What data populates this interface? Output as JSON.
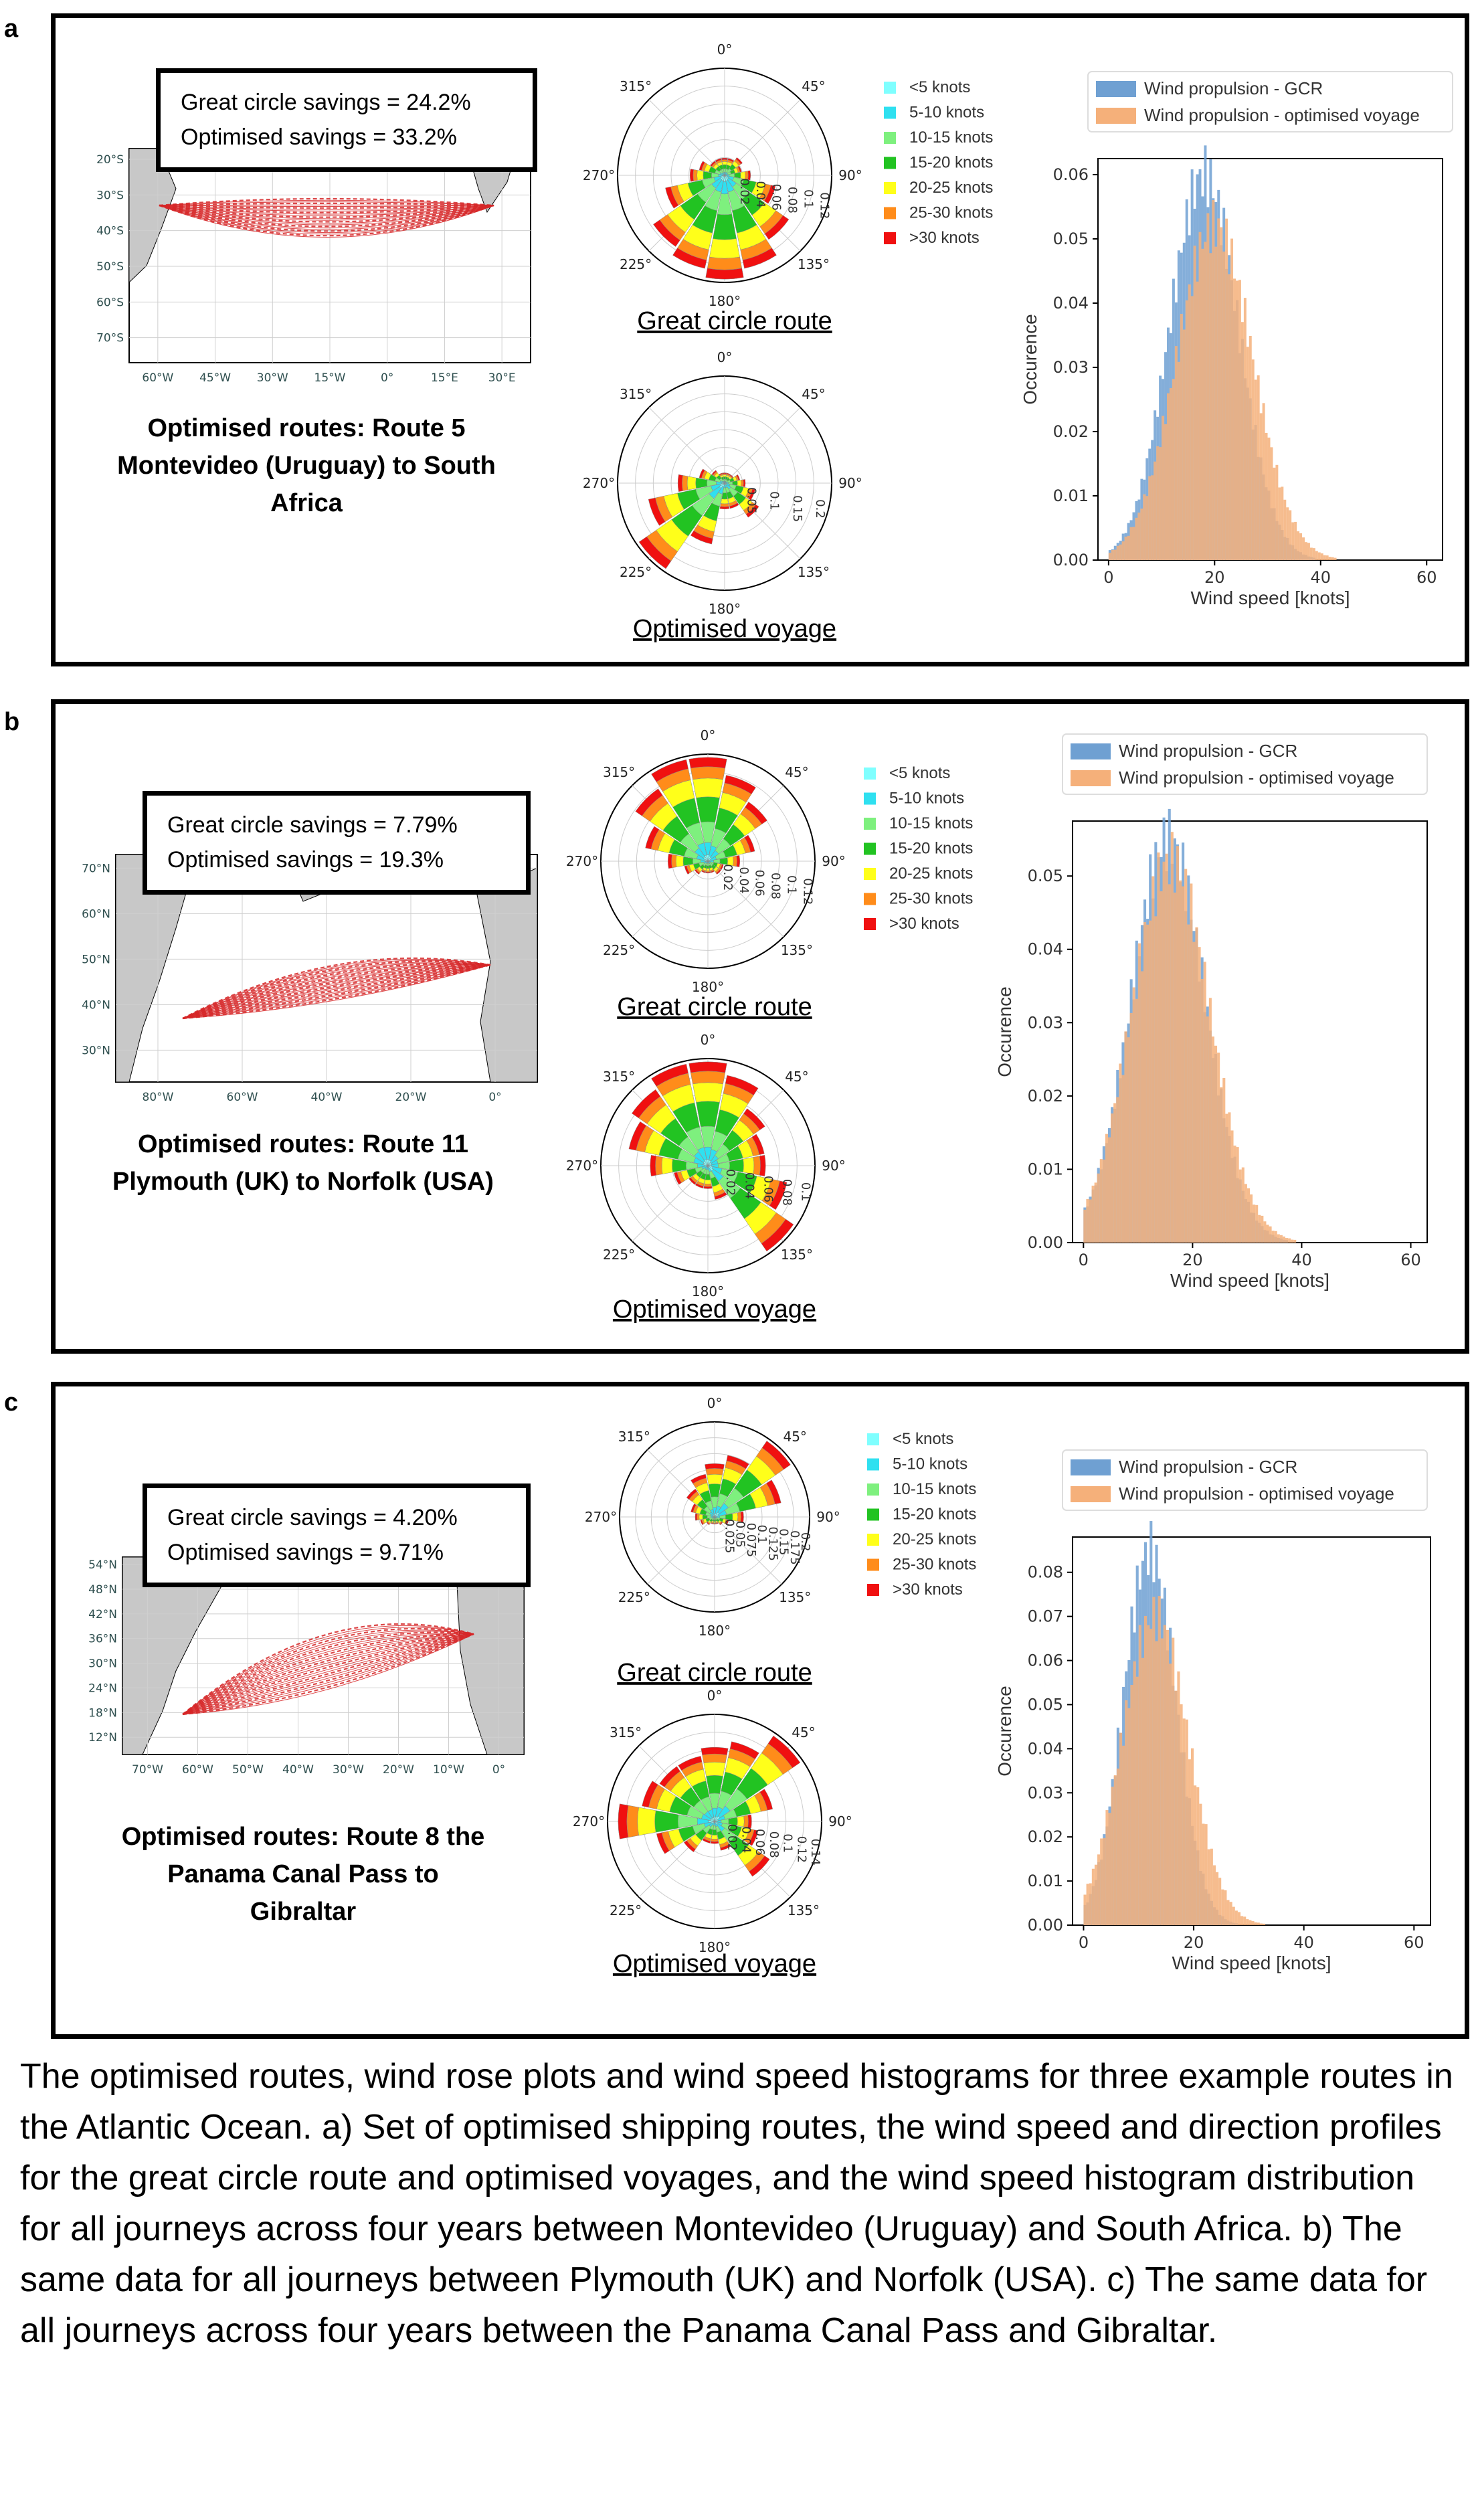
{
  "panels": [
    {
      "letter": "a",
      "savings": {
        "great_circle": "Great circle savings = 24.2%",
        "optimised": "Optimised savings = 33.2%"
      },
      "route_title": [
        "Optimised routes: Route 5",
        "Montevideo (Uruguay) to South",
        "Africa"
      ],
      "map": {
        "lat_labels": [
          "20°S",
          "30°S",
          "40°S",
          "50°S",
          "60°S",
          "70°S"
        ],
        "lon_labels": [
          "60°W",
          "45°W",
          "30°W",
          "15°W",
          "0°",
          "15°E",
          "30°E"
        ],
        "route_color": "#d62728"
      },
      "rose_gcr": {
        "caption": "Great circle route",
        "radial_labels": [
          "0.02",
          "0.04",
          "0.06",
          "0.08",
          "0.1",
          "0.12"
        ],
        "chart_data": {
          "type": "windrose",
          "directions_deg": [
            0,
            22.5,
            45,
            67.5,
            90,
            112.5,
            135,
            157.5,
            180,
            202.5,
            225,
            247.5,
            270,
            292.5,
            315,
            337.5
          ],
          "totals": [
            0.02,
            0.02,
            0.025,
            0.02,
            0.03,
            0.06,
            0.09,
            0.11,
            0.12,
            0.11,
            0.1,
            0.07,
            0.04,
            0.03,
            0.02,
            0.02
          ]
        }
      },
      "rose_opt": {
        "caption": "Optimised voyage",
        "radial_labels": [
          "0.05",
          "0.1",
          "0.15",
          "0.2"
        ],
        "chart_data": {
          "type": "windrose",
          "directions_deg": [
            0,
            22.5,
            45,
            67.5,
            90,
            112.5,
            135,
            157.5,
            180,
            202.5,
            225,
            247.5,
            270,
            292.5,
            315,
            337.5
          ],
          "totals": [
            0.02,
            0.02,
            0.02,
            0.03,
            0.04,
            0.06,
            0.08,
            0.05,
            0.05,
            0.12,
            0.2,
            0.15,
            0.09,
            0.05,
            0.03,
            0.02
          ]
        }
      },
      "histogram": {
        "legend": [
          "Wind propulsion - GCR",
          "Wind propulsion - optimised voyage"
        ],
        "xlabel": "Wind speed [knots]",
        "ylabel": "Occurence",
        "yticks": [
          "0.00",
          "0.01",
          "0.02",
          "0.03",
          "0.04",
          "0.05",
          "0.06"
        ],
        "xticks": [
          "0",
          "20",
          "40",
          "60"
        ],
        "chart_data": {
          "type": "histogram",
          "xlim": [
            -2,
            63
          ],
          "ylim": [
            0,
            0.0625
          ],
          "series": [
            {
              "name": "Wind propulsion - GCR",
              "color": "#6fa0d2",
              "mean": 18,
              "sd": 6.5,
              "peak": 0.06
            },
            {
              "name": "Wind propulsion - optimised voyage",
              "color": "#f5b07a",
              "mean": 20,
              "sd": 7.2,
              "peak": 0.052
            }
          ]
        }
      }
    },
    {
      "letter": "b",
      "savings": {
        "great_circle": "Great circle savings = 7.79%",
        "optimised": "Optimised savings = 19.3%"
      },
      "route_title": [
        "Optimised routes: Route 11",
        "Plymouth (UK) to Norfolk (USA)"
      ],
      "map": {
        "lat_labels": [
          "70°N",
          "60°N",
          "50°N",
          "40°N",
          "30°N"
        ],
        "lon_labels": [
          "80°W",
          "60°W",
          "40°W",
          "20°W",
          "0°"
        ],
        "route_color": "#d62728"
      },
      "rose_gcr": {
        "caption": "Great circle route",
        "radial_labels": [
          "0.02",
          "0.04",
          "0.06",
          "0.08",
          "0.1",
          "0.12"
        ],
        "chart_data": {
          "type": "windrose",
          "directions_deg": [
            0,
            22.5,
            45,
            67.5,
            90,
            112.5,
            135,
            157.5,
            180,
            202.5,
            225,
            247.5,
            270,
            292.5,
            315,
            337.5
          ],
          "totals": [
            0.13,
            0.11,
            0.09,
            0.06,
            0.04,
            0.02,
            0.02,
            0.015,
            0.015,
            0.015,
            0.02,
            0.03,
            0.05,
            0.08,
            0.11,
            0.13
          ]
        }
      },
      "rose_opt": {
        "caption": "Optimised voyage",
        "radial_labels": [
          "0.02",
          "0.04",
          "0.06",
          "0.08",
          "0.1"
        ],
        "chart_data": {
          "type": "windrose",
          "directions_deg": [
            0,
            22.5,
            45,
            67.5,
            90,
            112.5,
            135,
            157.5,
            180,
            202.5,
            225,
            247.5,
            270,
            292.5,
            315,
            337.5
          ],
          "totals": [
            0.09,
            0.08,
            0.06,
            0.05,
            0.05,
            0.07,
            0.09,
            0.03,
            0.02,
            0.02,
            0.02,
            0.03,
            0.05,
            0.07,
            0.08,
            0.09
          ]
        }
      },
      "histogram": {
        "legend": [
          "Wind propulsion - GCR",
          "Wind propulsion - optimised voyage"
        ],
        "xlabel": "Wind speed [knots]",
        "ylabel": "Occurence",
        "yticks": [
          "0.00",
          "0.01",
          "0.02",
          "0.03",
          "0.04",
          "0.05"
        ],
        "xticks": [
          "0",
          "20",
          "40",
          "60"
        ],
        "chart_data": {
          "type": "histogram",
          "xlim": [
            -2,
            63
          ],
          "ylim": [
            0,
            0.0575
          ],
          "series": [
            {
              "name": "Wind propulsion - GCR",
              "color": "#6fa0d2",
              "mean": 15.5,
              "sd": 6.8,
              "peak": 0.055
            },
            {
              "name": "Wind propulsion - optimised voyage",
              "color": "#f5b07a",
              "mean": 16,
              "sd": 7.2,
              "peak": 0.052
            }
          ]
        }
      }
    },
    {
      "letter": "c",
      "savings": {
        "great_circle": "Great circle savings = 4.20%",
        "optimised": "Optimised savings = 9.71%"
      },
      "route_title": [
        "Optimised routes: Route 8 the",
        "Panama Canal Pass to",
        "Gibraltar"
      ],
      "map": {
        "lat_labels": [
          "54°N",
          "48°N",
          "42°N",
          "36°N",
          "30°N",
          "24°N",
          "18°N",
          "12°N"
        ],
        "lon_labels": [
          "70°W",
          "60°W",
          "50°W",
          "40°W",
          "30°W",
          "20°W",
          "10°W",
          "0°"
        ],
        "route_color": "#d62728"
      },
      "rose_gcr": {
        "caption": "Great circle route",
        "radial_labels": [
          "0.025",
          "0.05",
          "0.075",
          "0.1",
          "0.125",
          "0.15",
          "0.175",
          "0.2"
        ],
        "chart_data": {
          "type": "windrose",
          "directions_deg": [
            0,
            22.5,
            45,
            67.5,
            90,
            112.5,
            135,
            157.5,
            180,
            202.5,
            225,
            247.5,
            270,
            292.5,
            315,
            337.5
          ],
          "totals": [
            0.11,
            0.13,
            0.19,
            0.14,
            0.06,
            0.03,
            0.02,
            0.015,
            0.015,
            0.015,
            0.02,
            0.03,
            0.04,
            0.05,
            0.07,
            0.09
          ]
        }
      },
      "rose_opt": {
        "caption": "Optimised voyage",
        "radial_labels": [
          "0.02",
          "0.04",
          "0.06",
          "0.08",
          "0.1",
          "0.12",
          "0.14"
        ],
        "chart_data": {
          "type": "windrose",
          "directions_deg": [
            0,
            22.5,
            45,
            67.5,
            90,
            112.5,
            135,
            157.5,
            180,
            202.5,
            225,
            247.5,
            270,
            292.5,
            315,
            337.5
          ],
          "totals": [
            0.1,
            0.11,
            0.14,
            0.08,
            0.05,
            0.06,
            0.09,
            0.04,
            0.03,
            0.03,
            0.05,
            0.08,
            0.13,
            0.1,
            0.09,
            0.09
          ]
        }
      },
      "histogram": {
        "legend": [
          "Wind propulsion - GCR",
          "Wind propulsion - optimised voyage"
        ],
        "xlabel": "Wind speed [knots]",
        "ylabel": "Occurence",
        "yticks": [
          "0.00",
          "0.01",
          "0.02",
          "0.03",
          "0.04",
          "0.05",
          "0.06",
          "0.07",
          "0.08"
        ],
        "xticks": [
          "0",
          "20",
          "40",
          "60"
        ],
        "chart_data": {
          "type": "histogram",
          "xlim": [
            -2,
            63
          ],
          "ylim": [
            0,
            0.088
          ],
          "series": [
            {
              "name": "Wind propulsion - GCR",
              "color": "#6fa0d2",
              "mean": 12,
              "sd": 4.8,
              "peak": 0.085
            },
            {
              "name": "Wind propulsion - optimised voyage",
              "color": "#f5b07a",
              "mean": 13,
              "sd": 6,
              "peak": 0.07
            }
          ]
        }
      }
    }
  ],
  "speed_legend": {
    "labels": [
      "<5 knots",
      "5-10 knots",
      "10-15 knots",
      "15-20 knots",
      "20-25 knots",
      "25-30 knots",
      ">30 knots"
    ],
    "colors": [
      "#7fffff",
      "#2fe0f0",
      "#7ef07e",
      "#22c322",
      "#ffff1a",
      "#ff8c1a",
      "#f01010"
    ]
  },
  "compass_labels": [
    "0°",
    "45°",
    "90°",
    "135°",
    "180°",
    "225°",
    "270°",
    "315°"
  ],
  "caption": "The optimised routes, wind rose plots and wind speed histograms for three example routes in the Atlantic Ocean. a) Set of optimised shipping routes, the wind speed and direction profiles for the great circle route and optimised voyages, and the wind speed histogram distribution for all journeys across four years between Montevideo (Uruguay) and South Africa. b) The same data for all journeys between Plymouth (UK) and Norfolk (USA). c) The same data for all journeys across four years between the Panama Canal Pass and Gibraltar."
}
